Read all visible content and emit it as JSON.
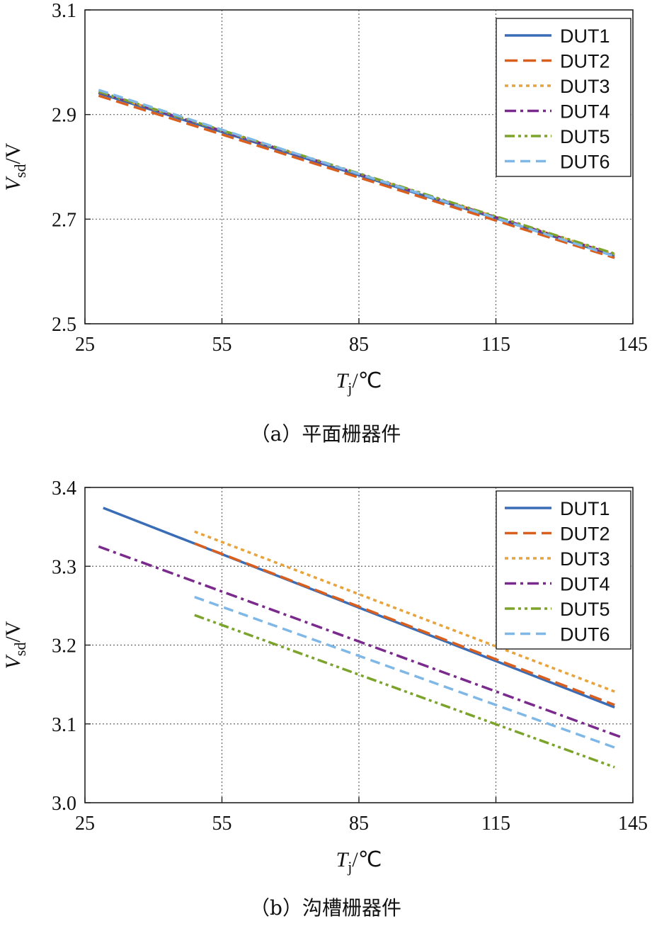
{
  "chart_data": [
    {
      "type": "line",
      "title": "",
      "caption": "（a）平面栅器件",
      "xlabel_var": "T",
      "xlabel_sub": "j",
      "xlabel_unit": "/℃",
      "ylabel_var": "V",
      "ylabel_sub": "sd",
      "ylabel_unit": "/V",
      "xlim": [
        25,
        145
      ],
      "ylim": [
        2.5,
        3.1
      ],
      "xticks": [
        "25",
        "55",
        "85",
        "115",
        "145"
      ],
      "yticks": [
        "2.5",
        "2.7",
        "2.9",
        "3.1"
      ],
      "grid": true,
      "legend_position": "top-right",
      "series": [
        {
          "name": "DUT1",
          "color": "#3a6db5",
          "dash": "solid",
          "x": [
            28,
            141
          ],
          "y": [
            2.941,
            2.63
          ]
        },
        {
          "name": "DUT2",
          "color": "#d95f1f",
          "dash": "dashed",
          "x": [
            28,
            141
          ],
          "y": [
            2.936,
            2.626
          ]
        },
        {
          "name": "DUT3",
          "color": "#e8a33a",
          "dash": "dotted",
          "x": [
            28,
            141
          ],
          "y": [
            2.943,
            2.633
          ]
        },
        {
          "name": "DUT4",
          "color": "#7a2a8c",
          "dash": "dashdot",
          "x": [
            28,
            141
          ],
          "y": [
            2.943,
            2.632
          ]
        },
        {
          "name": "DUT5",
          "color": "#7ca42c",
          "dash": "dashdotdot",
          "x": [
            28,
            141
          ],
          "y": [
            2.944,
            2.634
          ]
        },
        {
          "name": "DUT6",
          "color": "#7fb8e6",
          "dash": "longdash",
          "x": [
            28,
            141
          ],
          "y": [
            2.947,
            2.629
          ]
        }
      ]
    },
    {
      "type": "line",
      "title": "",
      "caption": "（b）沟槽栅器件",
      "xlabel_var": "T",
      "xlabel_sub": "j",
      "xlabel_unit": "/℃",
      "ylabel_var": "V",
      "ylabel_sub": "sd",
      "ylabel_unit": "/V",
      "xlim": [
        25,
        145
      ],
      "ylim": [
        3.0,
        3.4
      ],
      "xticks": [
        "25",
        "55",
        "85",
        "115",
        "145"
      ],
      "yticks": [
        "3.0",
        "3.1",
        "3.2",
        "3.3",
        "3.4"
      ],
      "grid": true,
      "legend_position": "top-right",
      "series": [
        {
          "name": "DUT1",
          "color": "#3a6db5",
          "dash": "solid",
          "x": [
            29,
            141
          ],
          "y": [
            3.374,
            3.121
          ]
        },
        {
          "name": "DUT2",
          "color": "#d95f1f",
          "dash": "dashed",
          "x": [
            49,
            141
          ],
          "y": [
            3.329,
            3.124
          ]
        },
        {
          "name": "DUT3",
          "color": "#e8a33a",
          "dash": "dotted",
          "x": [
            49,
            141
          ],
          "y": [
            3.344,
            3.141
          ]
        },
        {
          "name": "DUT4",
          "color": "#7a2a8c",
          "dash": "dashdot",
          "x": [
            28,
            143
          ],
          "y": [
            3.325,
            3.082
          ]
        },
        {
          "name": "DUT5",
          "color": "#7ca42c",
          "dash": "dashdotdot",
          "x": [
            49,
            141
          ],
          "y": [
            3.238,
            3.045
          ]
        },
        {
          "name": "DUT6",
          "color": "#7fb8e6",
          "dash": "longdash",
          "x": [
            49,
            141
          ],
          "y": [
            3.261,
            3.07
          ]
        }
      ]
    }
  ]
}
